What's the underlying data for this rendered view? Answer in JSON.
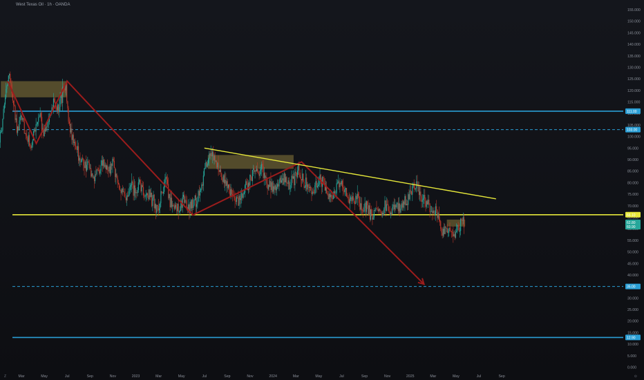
{
  "header": {
    "title": "West Texas Oil · 1h · OANDA"
  },
  "corners": {
    "left": "Z",
    "right": "⊙"
  },
  "colors": {
    "background": "#0e0f13",
    "up": "#26a69a",
    "down": "#c0392b",
    "projection": "#9b1c1c",
    "trendline": "#e6e83a",
    "support": "#e6e83a",
    "level_blue": "#2a9fd6",
    "zone": "#8a7a3c"
  },
  "chart_data": {
    "type": "candlestick",
    "title": "West Texas Oil · 1h · OANDA",
    "ylim": [
      0,
      160
    ],
    "y_ticks": [
      0,
      5,
      10,
      15,
      20,
      25,
      30,
      35,
      40,
      45,
      50,
      55,
      60,
      65,
      70,
      75,
      80,
      85,
      90,
      95,
      100,
      105,
      110,
      115,
      120,
      125,
      130,
      135,
      140,
      145,
      150,
      155
    ],
    "x_ticks": [
      "Mar",
      "May",
      "Jul",
      "Sep",
      "Nov",
      "2023",
      "Mar",
      "May",
      "Jul",
      "Sep",
      "Nov",
      "2024",
      "Mar",
      "May",
      "Jul",
      "Sep",
      "Nov",
      "2025",
      "Mar",
      "May",
      "Jul",
      "Sep"
    ],
    "x_tick_months": [
      2,
      4,
      6,
      8,
      10,
      12,
      14,
      16,
      18,
      20,
      22,
      24,
      26,
      28,
      30,
      32,
      34,
      36,
      38,
      40,
      42,
      44
    ],
    "price_path": [
      [
        0.0,
        94
      ],
      [
        0.5,
        112
      ],
      [
        0.9,
        128
      ],
      [
        1.1,
        122
      ],
      [
        1.4,
        110
      ],
      [
        1.7,
        102
      ],
      [
        2.0,
        110
      ],
      [
        2.4,
        100
      ],
      [
        2.8,
        96
      ],
      [
        3.2,
        103
      ],
      [
        3.6,
        108
      ],
      [
        4.0,
        102
      ],
      [
        4.4,
        107
      ],
      [
        4.8,
        115
      ],
      [
        5.2,
        112
      ],
      [
        5.6,
        118
      ],
      [
        5.9,
        121
      ],
      [
        6.1,
        108
      ],
      [
        6.4,
        100
      ],
      [
        6.8,
        95
      ],
      [
        7.2,
        90
      ],
      [
        7.6,
        88
      ],
      [
        8.0,
        86
      ],
      [
        8.4,
        82
      ],
      [
        8.8,
        86
      ],
      [
        9.2,
        89
      ],
      [
        9.6,
        84
      ],
      [
        10.0,
        88
      ],
      [
        10.4,
        80
      ],
      [
        10.8,
        76
      ],
      [
        11.2,
        72
      ],
      [
        11.6,
        78
      ],
      [
        12.0,
        76
      ],
      [
        12.4,
        79
      ],
      [
        12.8,
        74
      ],
      [
        13.2,
        76
      ],
      [
        13.6,
        71
      ],
      [
        14.0,
        67
      ],
      [
        14.2,
        75
      ],
      [
        14.6,
        80
      ],
      [
        15.0,
        72
      ],
      [
        15.4,
        70
      ],
      [
        15.8,
        68
      ],
      [
        16.2,
        73
      ],
      [
        16.6,
        69
      ],
      [
        17.0,
        71
      ],
      [
        17.4,
        74
      ],
      [
        17.8,
        81
      ],
      [
        18.2,
        88
      ],
      [
        18.6,
        93
      ],
      [
        19.0,
        89
      ],
      [
        19.4,
        85
      ],
      [
        19.8,
        80
      ],
      [
        20.2,
        76
      ],
      [
        20.6,
        74
      ],
      [
        21.0,
        72
      ],
      [
        21.4,
        76
      ],
      [
        21.8,
        80
      ],
      [
        22.2,
        83
      ],
      [
        22.6,
        86
      ],
      [
        23.0,
        85
      ],
      [
        23.4,
        81
      ],
      [
        23.8,
        78
      ],
      [
        24.2,
        76
      ],
      [
        24.6,
        80
      ],
      [
        25.0,
        83
      ],
      [
        25.4,
        79
      ],
      [
        25.8,
        82
      ],
      [
        26.2,
        86
      ],
      [
        26.6,
        81
      ],
      [
        27.0,
        78
      ],
      [
        27.4,
        75
      ],
      [
        27.8,
        79
      ],
      [
        28.2,
        82
      ],
      [
        28.6,
        78
      ],
      [
        29.0,
        72
      ],
      [
        29.4,
        76
      ],
      [
        29.8,
        80
      ],
      [
        30.2,
        77
      ],
      [
        30.6,
        74
      ],
      [
        31.0,
        71
      ],
      [
        31.4,
        73
      ],
      [
        31.8,
        68
      ],
      [
        32.2,
        70
      ],
      [
        32.6,
        66
      ],
      [
        33.0,
        68
      ],
      [
        33.4,
        67
      ],
      [
        33.8,
        70
      ],
      [
        34.2,
        67
      ],
      [
        34.6,
        71
      ],
      [
        35.0,
        69
      ],
      [
        35.4,
        70
      ],
      [
        35.8,
        73
      ],
      [
        36.2,
        78
      ],
      [
        36.4,
        80
      ],
      [
        36.8,
        76
      ],
      [
        37.2,
        72
      ],
      [
        37.6,
        70
      ],
      [
        38.0,
        68
      ],
      [
        38.4,
        66
      ],
      [
        38.6,
        62
      ],
      [
        38.8,
        58
      ],
      [
        39.0,
        60
      ],
      [
        39.4,
        62
      ],
      [
        39.8,
        58
      ],
      [
        40.2,
        60
      ],
      [
        40.5,
        63
      ],
      [
        40.7,
        62
      ]
    ],
    "projection_path": [
      [
        0.8,
        124
      ],
      [
        3.3,
        97
      ],
      [
        6.0,
        124
      ],
      [
        17.0,
        66
      ],
      [
        26.5,
        89
      ],
      [
        37.2,
        36
      ]
    ],
    "trendline": [
      [
        18.0,
        95
      ],
      [
        43.5,
        73
      ]
    ],
    "zones": [
      {
        "x0": 0.2,
        "x1": 6.0,
        "y0": 117,
        "y1": 124
      },
      {
        "x0": 18.3,
        "x1": 25.8,
        "y0": 86,
        "y1": 92
      },
      {
        "x0": 39.2,
        "x1": 40.8,
        "y0": 61,
        "y1": 64
      }
    ],
    "levels": [
      {
        "price": 111.0,
        "style": "solid",
        "color": "#2a9fd6",
        "label": "111.00"
      },
      {
        "price": 103.0,
        "style": "dashed",
        "color": "#2a9fd6",
        "label": "103.00"
      },
      {
        "price": 66.1,
        "style": "solid",
        "color": "#e6e83a",
        "label": "66.10"
      },
      {
        "price": 35.0,
        "style": "dashed",
        "color": "#2a9fd6",
        "label": "35.00"
      },
      {
        "price": 12.9,
        "style": "solid",
        "color": "#2a9fd6",
        "label": "12.90"
      }
    ],
    "price_labels": [
      {
        "price": 62.8,
        "color": "#26a69a",
        "label": "62.80"
      },
      {
        "price": 60.9,
        "color": "#26a69a",
        "label": "60.90"
      }
    ],
    "grid": false
  }
}
